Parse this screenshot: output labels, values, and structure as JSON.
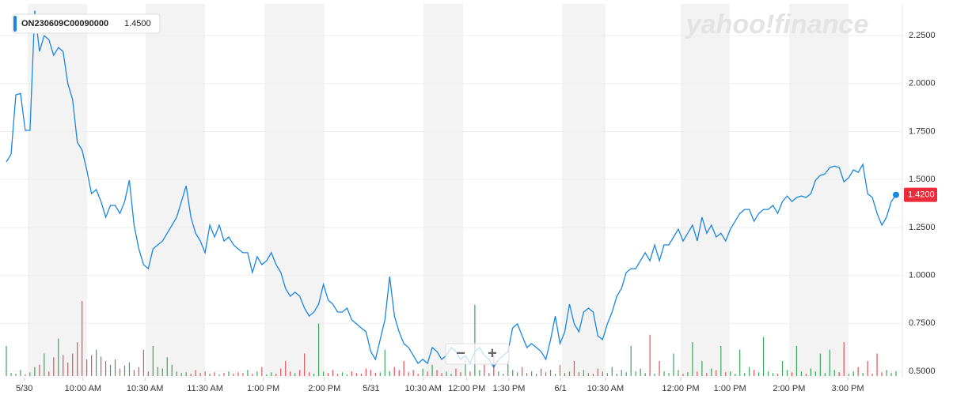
{
  "chart_data": {
    "type": "line",
    "watermark": "yahoo!finance",
    "series": [
      {
        "name": "ON230609C00090000",
        "color": "#1a86e0",
        "values": [
          1.591,
          1.632,
          1.941,
          1.949,
          1.756,
          1.756,
          2.38,
          2.167,
          2.25,
          2.229,
          2.147,
          2.188,
          2.167,
          1.999,
          1.917,
          1.694,
          1.653,
          1.55,
          1.426,
          1.447,
          1.385,
          1.303,
          1.365,
          1.365,
          1.323,
          1.385,
          1.496,
          1.262,
          1.138,
          1.056,
          1.035,
          1.138,
          1.159,
          1.179,
          1.22,
          1.262,
          1.303,
          1.385,
          1.467,
          1.303,
          1.22,
          1.179,
          1.118,
          1.262,
          1.2,
          1.262,
          1.179,
          1.2,
          1.159,
          1.138,
          1.118,
          1.118,
          1.015,
          1.097,
          1.056,
          1.076,
          1.118,
          1.056,
          1.015,
          0.932,
          0.891,
          0.912,
          0.891,
          0.829,
          0.788,
          0.809,
          0.85,
          0.953,
          0.871,
          0.85,
          0.809,
          0.809,
          0.829,
          0.768,
          0.747,
          0.726,
          0.706,
          0.603,
          0.562,
          0.665,
          0.768,
          0.994,
          0.788,
          0.706,
          0.644,
          0.624,
          0.582,
          0.541,
          0.562,
          0.541,
          0.624,
          0.603,
          0.562,
          0.582,
          0.624,
          0.603,
          0.562,
          0.582,
          0.541,
          0.603,
          0.624,
          0.582,
          0.562,
          0.521,
          0.562,
          0.582,
          0.603,
          0.726,
          0.747,
          0.685,
          0.624,
          0.644,
          0.624,
          0.603,
          0.562,
          0.665,
          0.788,
          0.644,
          0.706,
          0.85,
          0.747,
          0.706,
          0.809,
          0.829,
          0.809,
          0.685,
          0.665,
          0.747,
          0.809,
          0.891,
          0.932,
          1.015,
          1.035,
          1.035,
          1.076,
          1.118,
          1.076,
          1.159,
          1.076,
          1.159,
          1.159,
          1.2,
          1.241,
          1.179,
          1.22,
          1.262,
          1.179,
          1.303,
          1.22,
          1.262,
          1.2,
          1.22,
          1.179,
          1.241,
          1.282,
          1.323,
          1.344,
          1.344,
          1.282,
          1.323,
          1.344,
          1.344,
          1.365,
          1.323,
          1.385,
          1.414,
          1.385,
          1.406,
          1.414,
          1.406,
          1.426,
          1.496,
          1.521,
          1.529,
          1.562,
          1.57,
          1.562,
          1.488,
          1.509,
          1.55,
          1.537,
          1.579,
          1.426,
          1.406,
          1.323,
          1.262,
          1.303,
          1.385,
          1.42
        ],
        "legend_value": {
          "value": 1.45,
          "label": "1.4500"
        },
        "last_value": {
          "value": 1.42,
          "label": "1.4200"
        },
        "last_color": "#ec2b3b"
      }
    ],
    "volume": {
      "values": [
        40,
        4,
        3,
        8,
        2,
        5,
        12,
        15,
        30,
        6,
        25,
        50,
        28,
        18,
        30,
        45,
        100,
        22,
        28,
        35,
        26,
        20,
        15,
        22,
        10,
        14,
        18,
        8,
        12,
        35,
        6,
        40,
        12,
        10,
        25,
        15,
        6,
        4,
        5,
        3,
        8,
        4,
        6,
        3,
        5,
        2,
        4,
        6,
        3,
        5,
        4,
        8,
        3,
        6,
        12,
        2,
        5,
        3,
        10,
        20,
        6,
        4,
        8,
        30,
        5,
        3,
        70,
        6,
        4,
        8,
        3,
        5,
        2,
        6,
        4,
        3,
        10,
        8,
        4,
        5,
        35,
        6,
        12,
        8,
        20,
        5,
        8,
        3,
        10,
        6,
        15,
        8,
        4,
        6,
        3,
        10,
        5,
        22,
        6,
        95,
        8,
        15,
        4,
        30,
        6,
        3,
        20,
        8,
        5,
        12,
        4,
        6,
        3,
        10,
        5,
        8,
        3,
        15,
        4,
        6,
        20,
        5,
        8,
        4,
        3,
        10,
        6,
        4,
        12,
        3,
        8,
        5,
        40,
        6,
        10,
        4,
        55,
        3,
        20,
        6,
        4,
        30,
        8,
        3,
        5,
        45,
        6,
        20,
        4,
        10,
        8,
        40,
        5,
        6,
        3,
        35,
        4,
        12,
        8,
        5,
        52,
        6,
        4,
        3,
        20,
        8,
        5,
        40,
        6,
        3,
        10,
        6,
        30,
        4,
        35,
        8,
        5,
        45,
        3,
        6,
        12,
        4,
        20,
        3,
        30,
        5,
        8,
        4,
        6
      ],
      "up_color": "#3ca55c",
      "down_color": "#e0525a"
    },
    "xlim": [
      0,
      188
    ],
    "xticks": [
      {
        "value": 3.8,
        "label": "5/30"
      },
      {
        "value": 16.2,
        "label": "10:00 AM"
      },
      {
        "value": 29.3,
        "label": "10:30 AM"
      },
      {
        "value": 42,
        "label": "11:30 AM"
      },
      {
        "value": 54.3,
        "label": "1:00 PM"
      },
      {
        "value": 67.2,
        "label": "2:00 PM"
      },
      {
        "value": 77.1,
        "label": "5/31"
      },
      {
        "value": 88.1,
        "label": "10:30 AM"
      },
      {
        "value": 97.3,
        "label": "12:00 PM"
      },
      {
        "value": 106.2,
        "label": "1:30 PM"
      },
      {
        "value": 117.1,
        "label": "6/1"
      },
      {
        "value": 126.6,
        "label": "10:30 AM"
      },
      {
        "value": 142.5,
        "label": "12:00 PM"
      },
      {
        "value": 152.9,
        "label": "1:00 PM"
      },
      {
        "value": 165.4,
        "label": "2:00 PM"
      },
      {
        "value": 177.8,
        "label": "3:00 PM"
      }
    ],
    "ylim": [
      0.467,
      2.415
    ],
    "yticks": [
      {
        "value": 0.5,
        "label": "0.5000"
      },
      {
        "value": 0.75,
        "label": "0.7500"
      },
      {
        "value": 1,
        "label": "1.0000"
      },
      {
        "value": 1.25,
        "label": "1.2500"
      },
      {
        "value": 1.5,
        "label": "1.5000"
      },
      {
        "value": 1.75,
        "label": "1.7500"
      },
      {
        "value": 2,
        "label": "2.0000"
      },
      {
        "value": 2.25,
        "label": "2.2500"
      }
    ],
    "grid": true,
    "controls": [
      "−",
      "+"
    ]
  }
}
